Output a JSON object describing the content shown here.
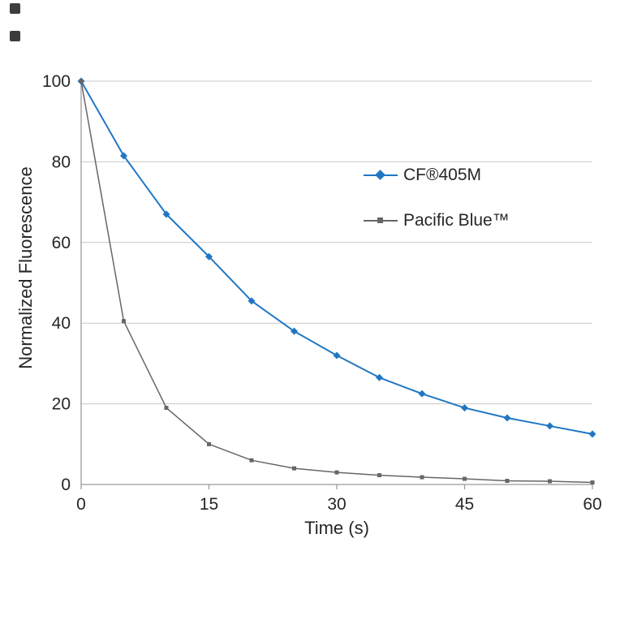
{
  "chart_data": {
    "type": "line",
    "title": "",
    "xlabel": "Time (s)",
    "ylabel": "Normalized Fluorescence",
    "xlim": [
      0,
      60
    ],
    "ylim": [
      0,
      100
    ],
    "xticks": [
      0,
      15,
      30,
      45,
      60
    ],
    "yticks": [
      0,
      20,
      40,
      60,
      80,
      100
    ],
    "grid": "horizontal-only",
    "legend_position": "inside-upper-right",
    "x": [
      0,
      5,
      10,
      15,
      20,
      25,
      30,
      35,
      40,
      45,
      50,
      55,
      60
    ],
    "series": [
      {
        "name": "CF®405M",
        "color": "#2077c4",
        "marker": "diamond",
        "values": [
          100,
          81.5,
          67,
          56.5,
          45.5,
          38,
          32,
          26.5,
          22.5,
          19,
          16.5,
          14.5,
          12.5
        ]
      },
      {
        "name": "Pacific Blue™",
        "color": "#666666",
        "marker": "square",
        "values": [
          100,
          40.5,
          19,
          10,
          6,
          4,
          3,
          2.3,
          1.8,
          1.4,
          0.9,
          0.8,
          0.5
        ]
      }
    ],
    "colors": {
      "grid": "#c9c9c9",
      "axis": "#9a9a9a",
      "text": "#262626"
    }
  }
}
